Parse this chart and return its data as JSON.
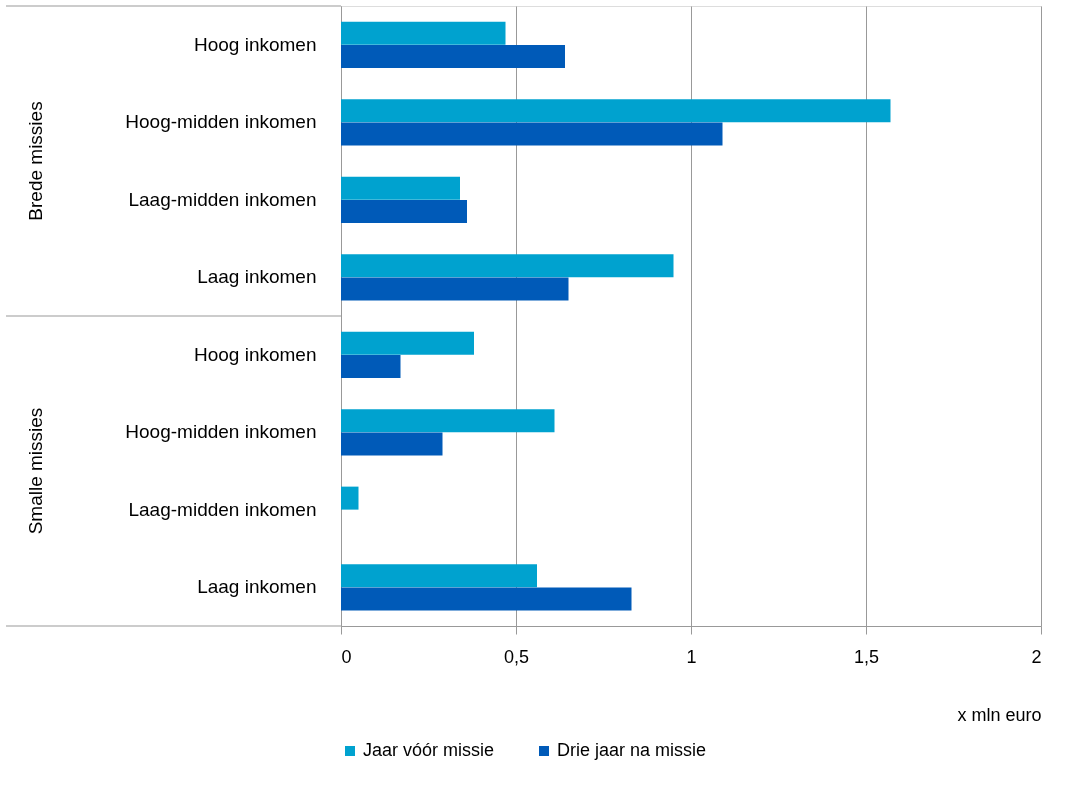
{
  "chart_data": {
    "type": "bar",
    "orientation": "horizontal",
    "xlabel": "x mln euro",
    "categories": [
      "Hoog inkomen",
      "Hoog-midden inkomen",
      "Laag-midden inkomen",
      "Laag inkomen",
      "Hoog inkomen",
      "Hoog-midden inkomen",
      "Laag-midden inkomen",
      "Laag inkomen"
    ],
    "series": [
      {
        "name": "Jaar vóór missie",
        "color": "#00a2cf",
        "values": [
          0.47,
          1.57,
          0.34,
          0.95,
          0.38,
          0.61,
          0.05,
          0.56
        ]
      },
      {
        "name": "Drie jaar na missie",
        "color": "#005ab8",
        "values": [
          0.64,
          1.09,
          0.36,
          0.65,
          0.17,
          0.29,
          null,
          0.83
        ]
      }
    ],
    "annotations": [
      "Brede missies",
      "Smalle missies"
    ],
    "xlim": [
      0,
      2
    ],
    "xticks": [
      0,
      {
        "value": 0.5,
        "label": "0,5"
      },
      1,
      {
        "value": 1.5,
        "label": "1,5"
      },
      2
    ],
    "grid": "x",
    "legend": "bottom"
  }
}
